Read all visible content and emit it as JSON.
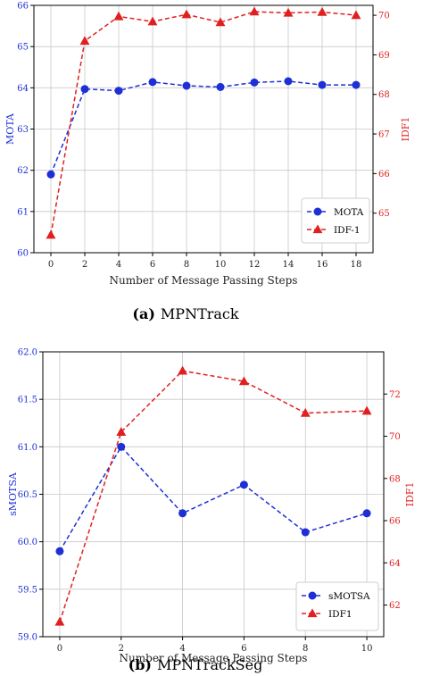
{
  "captions": [
    {
      "label": "(a)",
      "text": "MPNTrack"
    },
    {
      "label": "(b)",
      "text": "MPNTrackSeg"
    }
  ],
  "chart_data": [
    {
      "type": "line",
      "xlabel": "Number of Message Passing Steps",
      "ylabel": "MOTA",
      "ylabel_right": "IDF1",
      "x": [
        0,
        2,
        4,
        6,
        8,
        10,
        12,
        14,
        16,
        18
      ],
      "xticks": [
        "0",
        "2",
        "4",
        "6",
        "8",
        "10",
        "12",
        "14",
        "16",
        "18"
      ],
      "xlim": [
        -1,
        19
      ],
      "ylim": [
        60,
        66
      ],
      "ylim_right": [
        64.0,
        70.25
      ],
      "yticks": [
        "60",
        "61",
        "62",
        "63",
        "64",
        "65",
        "66"
      ],
      "yticks_right": [
        "65",
        "66",
        "67",
        "68",
        "69",
        "70"
      ],
      "grid": true,
      "legend_position": "bottom-right",
      "series": [
        {
          "name": "MOTA",
          "axis": "left",
          "color": "#1f2fd6",
          "marker": "circle",
          "values": [
            61.9,
            63.97,
            63.93,
            64.14,
            64.05,
            64.02,
            64.13,
            64.16,
            64.07,
            64.07
          ]
        },
        {
          "name": "IDF-1",
          "axis": "right",
          "color": "#e02020",
          "marker": "triangle",
          "values": [
            64.45,
            69.35,
            69.97,
            69.84,
            70.02,
            69.82,
            70.09,
            70.06,
            70.08,
            70.0
          ]
        }
      ]
    },
    {
      "type": "line",
      "xlabel": "Number of Message Passing Steps",
      "ylabel": "sMOTSA",
      "ylabel_right": "IDF1",
      "x": [
        0,
        2,
        4,
        6,
        8,
        10
      ],
      "xticks": [
        "0",
        "2",
        "4",
        "6",
        "8",
        "10"
      ],
      "xlim": [
        -0.55,
        10.55
      ],
      "ylim": [
        59.0,
        62.0
      ],
      "ylim_right": [
        60.5,
        74.0
      ],
      "yticks": [
        "59.0",
        "59.5",
        "60.0",
        "60.5",
        "61.0",
        "61.5",
        "62.0"
      ],
      "yticks_right": [
        "62",
        "64",
        "66",
        "68",
        "70",
        "72"
      ],
      "grid": true,
      "legend_position": "bottom-right",
      "series": [
        {
          "name": "sMOTSA",
          "axis": "left",
          "color": "#1f2fd6",
          "marker": "circle",
          "values": [
            59.9,
            61.0,
            60.3,
            60.6,
            60.1,
            60.3
          ]
        },
        {
          "name": "IDF1",
          "axis": "right",
          "color": "#e02020",
          "marker": "triangle",
          "values": [
            61.2,
            70.2,
            73.1,
            72.6,
            71.1,
            71.2
          ]
        }
      ]
    }
  ]
}
